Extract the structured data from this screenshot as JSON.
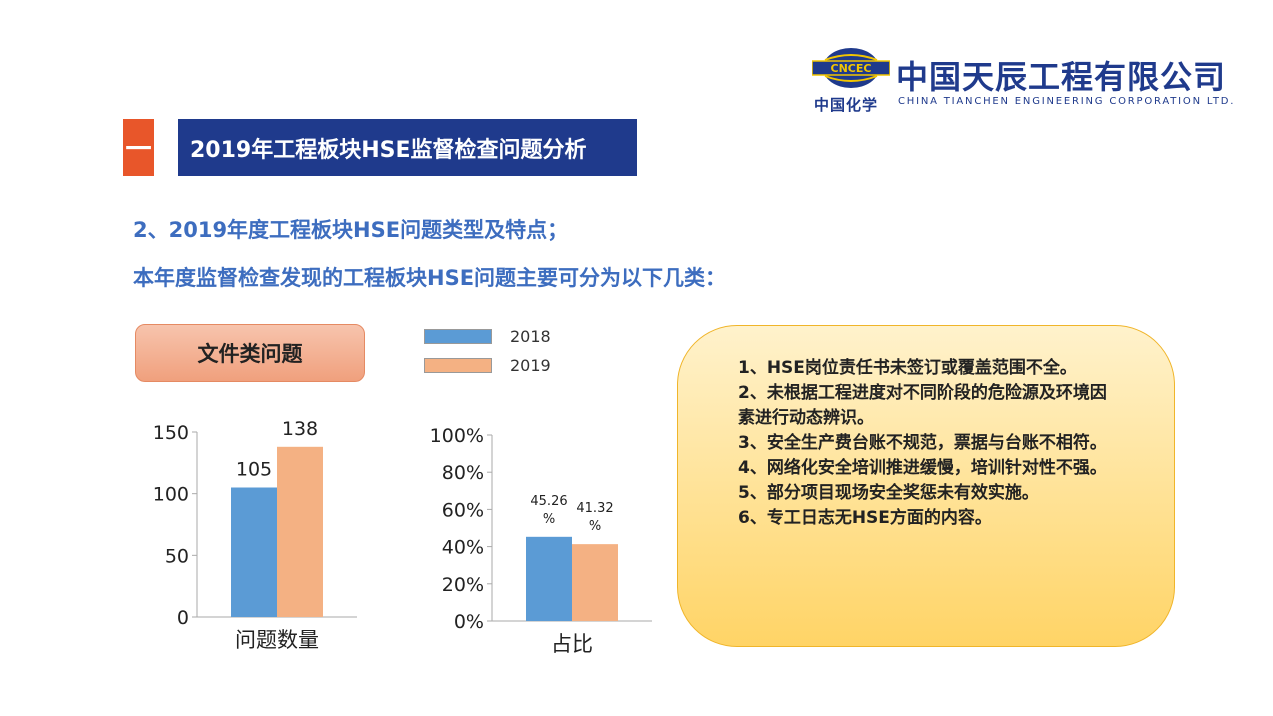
{
  "logo": {
    "emblem_text": "CNCEC",
    "name_cn": "中国天辰工程有限公司",
    "parent_cn": "中国化学",
    "name_en": "CHINA TIANCHEN ENGINEERING CORPORATION LTD."
  },
  "section": {
    "number": "一",
    "title": "2019年工程板块HSE监督检查问题分析"
  },
  "subtitle1": "2、2019年度工程板块HSE问题类型及特点；",
  "subtitle2": "本年度监督检查发现的工程板块HSE问题主要可分为以下几类：",
  "category_label": "文件类问题",
  "legend": [
    {
      "label": "2018",
      "color": "#5b9bd5"
    },
    {
      "label": "2019",
      "color": "#f4b183"
    }
  ],
  "chart_data": [
    {
      "type": "bar",
      "categories": [
        "问题数量"
      ],
      "series": [
        {
          "name": "2018",
          "values": [
            105
          ],
          "labels": [
            "105"
          ]
        },
        {
          "name": "2019",
          "values": [
            138
          ],
          "labels": [
            "138"
          ]
        }
      ],
      "yticks": [
        "0",
        "50",
        "100",
        "150"
      ],
      "ylim": [
        0,
        150
      ]
    },
    {
      "type": "bar",
      "categories": [
        "占比"
      ],
      "series": [
        {
          "name": "2018",
          "values": [
            45.26
          ],
          "labels": [
            "45.26%"
          ]
        },
        {
          "name": "2019",
          "values": [
            41.32
          ],
          "labels": [
            "41.32%"
          ]
        }
      ],
      "yticks": [
        "0%",
        "20%",
        "40%",
        "60%",
        "80%",
        "100%"
      ],
      "ylim": [
        0,
        100
      ]
    }
  ],
  "issues": [
    "1、HSE岗位责任书未签订或覆盖范围不全。",
    "2、未根据工程进度对不同阶段的危险源及环境因素进行动态辨识。",
    "3、安全生产费台账不规范，票据与台账不相符。",
    "4、网络化安全培训推进缓慢，培训针对性不强。",
    "5、部分项目现场安全奖惩未有效实施。",
    "6、专工日志无HSE方面的内容。"
  ]
}
